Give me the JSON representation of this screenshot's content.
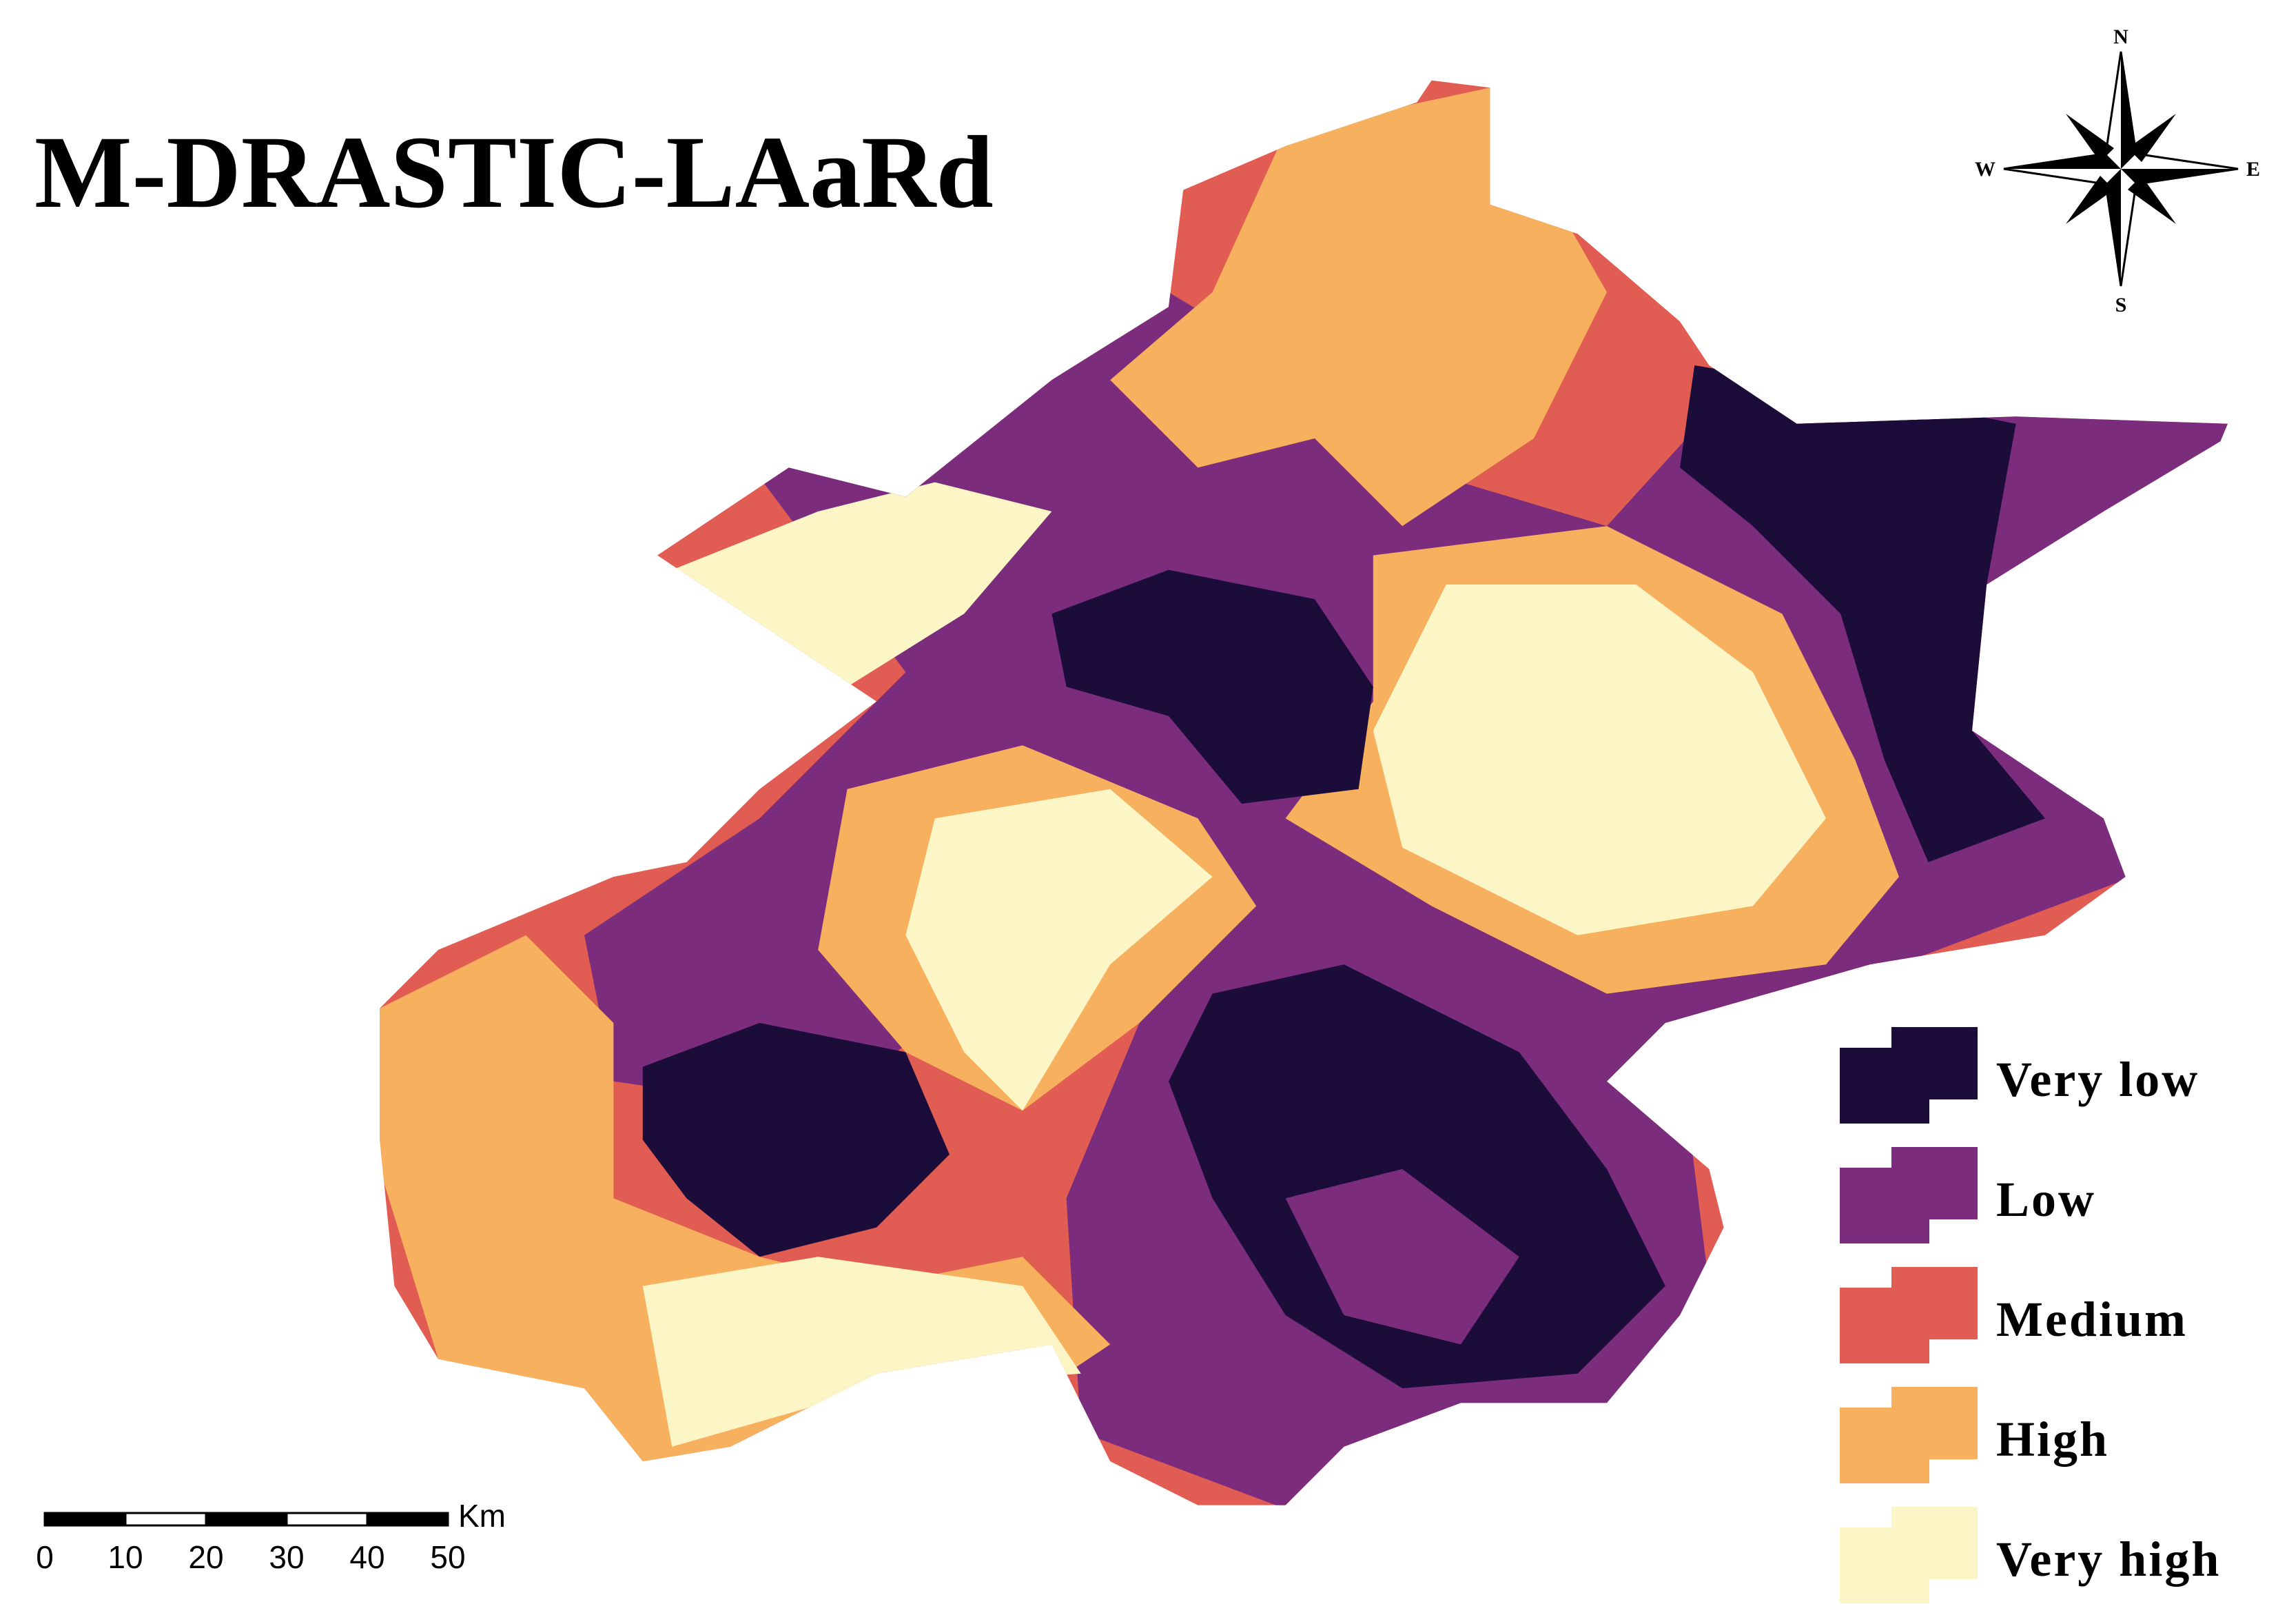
{
  "title": "M-DRASTIC-LAaRd",
  "compass": {
    "north": "N",
    "south": "S",
    "east": "E",
    "west": "W"
  },
  "legend": [
    {
      "name": "Very low",
      "color": "#1c0c3a"
    },
    {
      "name": "Low",
      "color": "#7b2c7c"
    },
    {
      "name": "Medium",
      "color": "#e15c52"
    },
    {
      "name": "High",
      "color": "#f7b05e"
    },
    {
      "name": "Very high",
      "color": "#fcf5c6"
    }
  ],
  "scale_bar": {
    "labels": [
      0,
      10,
      20,
      30,
      40,
      50
    ],
    "unit": "Km"
  }
}
